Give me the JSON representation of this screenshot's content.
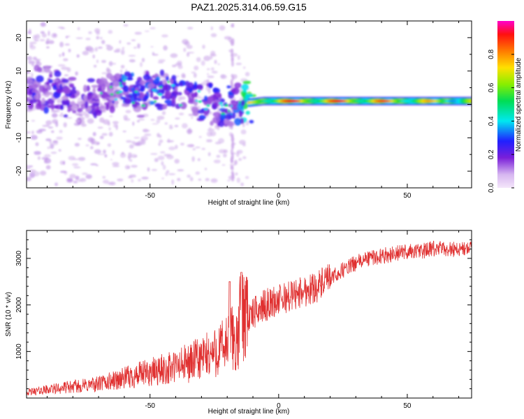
{
  "chart_data": [
    {
      "type": "heatmap",
      "title": "PAZ1.2025.314.06.59.G15",
      "xlabel": "Height of straight line (km)",
      "ylabel": "Frequency (Hz)",
      "xlim": [
        -98,
        75
      ],
      "ylim": [
        -25,
        25
      ],
      "xticks": [
        -50,
        0,
        50
      ],
      "yticks": [
        -20,
        -10,
        0,
        10,
        20
      ],
      "colorbar": {
        "label": "Normalized spectral amplitude",
        "range": [
          0,
          1
        ],
        "ticks": [
          "0.0",
          "0.2",
          "0.4",
          "0.6",
          "0.8"
        ],
        "colormap": [
          "#f4e6fa",
          "#c39be6",
          "#7a1fd9",
          "#2020ff",
          "#00e8f0",
          "#00dd55",
          "#88ee00",
          "#ffe000",
          "#ff7a00",
          "#ff1010",
          "#ff00cc"
        ]
      },
      "signal_trace": [
        {
          "x": -96,
          "f": 4,
          "amp": 0.35
        },
        {
          "x": -90,
          "f": 5,
          "amp": 0.4
        },
        {
          "x": -84,
          "f": 3,
          "amp": 0.35
        },
        {
          "x": -78,
          "f": 1,
          "amp": 0.3
        },
        {
          "x": -72,
          "f": 2,
          "amp": 0.35
        },
        {
          "x": -66,
          "f": 3,
          "amp": 0.3
        },
        {
          "x": -60,
          "f": 5,
          "amp": 0.45
        },
        {
          "x": -54,
          "f": 2,
          "amp": 0.4
        },
        {
          "x": -48,
          "f": 3,
          "amp": 0.45
        },
        {
          "x": -42,
          "f": 4,
          "amp": 0.4
        },
        {
          "x": -36,
          "f": 2,
          "amp": 0.4
        },
        {
          "x": -30,
          "f": 1,
          "amp": 0.4
        },
        {
          "x": -24,
          "f": 0,
          "amp": 0.4
        },
        {
          "x": -18,
          "f": -1,
          "amp": 0.45
        },
        {
          "x": -12,
          "f": 0.5,
          "amp": 0.75
        },
        {
          "x": -6,
          "f": 1,
          "amp": 0.85
        },
        {
          "x": 0,
          "f": 1,
          "amp": 0.9
        },
        {
          "x": 10,
          "f": 1,
          "amp": 0.9
        },
        {
          "x": 20,
          "f": 1,
          "amp": 0.9
        },
        {
          "x": 30,
          "f": 1,
          "amp": 0.9
        },
        {
          "x": 40,
          "f": 1,
          "amp": 0.85
        },
        {
          "x": 50,
          "f": 1,
          "amp": 0.8
        },
        {
          "x": 60,
          "f": 1,
          "amp": 0.75
        },
        {
          "x": 70,
          "f": 1,
          "amp": 0.7
        }
      ]
    },
    {
      "type": "line",
      "xlabel": "Height of straight line (km)",
      "ylabel": "SNR (10 * v/v)",
      "xlim": [
        -98,
        75
      ],
      "ylim": [
        0,
        3600
      ],
      "xticks": [
        -50,
        0,
        50
      ],
      "yticks": [
        1000,
        2000,
        3000
      ],
      "series": [
        {
          "name": "SNR",
          "color": "#e03030",
          "x": [
            -98,
            -90,
            -80,
            -70,
            -60,
            -50,
            -40,
            -30,
            -25,
            -20,
            -18,
            -16,
            -15,
            -14,
            -12,
            -10,
            -8,
            -5,
            0,
            5,
            10,
            15,
            20,
            25,
            30,
            35,
            40,
            45,
            50,
            55,
            60,
            65,
            70,
            75
          ],
          "y": [
            100,
            150,
            200,
            250,
            350,
            450,
            550,
            700,
            800,
            950,
            1100,
            900,
            1500,
            1500,
            1700,
            1800,
            1900,
            2000,
            2100,
            2200,
            2300,
            2400,
            2550,
            2750,
            2900,
            3000,
            3050,
            3100,
            3150,
            3150,
            3200,
            3200,
            3200,
            3200
          ]
        }
      ]
    }
  ]
}
